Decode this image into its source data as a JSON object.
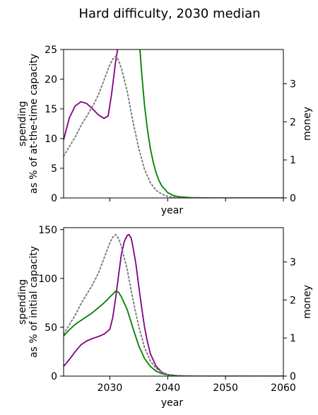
{
  "figure": {
    "suptitle": "Hard difficulty, 2030 median"
  },
  "colors": {
    "purple": "#800080",
    "green": "#008000",
    "dotted": "#808080"
  },
  "chart_data": [
    {
      "type": "line",
      "panel": "top",
      "xlabel": "year",
      "ylabel_line1": "spending",
      "ylabel_line2": "as % of at-the-time capacity",
      "ylabel_right": "money",
      "xlim": [
        2022,
        2060
      ],
      "ylim": [
        0,
        25
      ],
      "y2lim": [
        0,
        3.9
      ],
      "yticks": [
        0,
        5,
        10,
        15,
        20,
        25
      ],
      "y2ticks": [
        0,
        1,
        2,
        3
      ],
      "xticks": [
        2030,
        2040,
        2050,
        2060
      ],
      "xtick_labels_shown": false,
      "grid": false,
      "series": [
        {
          "color": "purple",
          "style": "solid",
          "axis": "left",
          "x": [
            2022,
            2023,
            2024,
            2025,
            2026,
            2027,
            2028,
            2029,
            2029.7,
            2030.3,
            2031,
            2031.5,
            2032
          ],
          "y": [
            9.8,
            13.5,
            15.5,
            16.2,
            15.9,
            15.0,
            14.0,
            13.4,
            13.8,
            17.5,
            23.0,
            26.0,
            30.0
          ]
        },
        {
          "color": "green",
          "style": "solid",
          "axis": "left",
          "x": [
            2035.2,
            2035.5,
            2036,
            2036.5,
            2037,
            2037.5,
            2038,
            2038.5,
            2039,
            2040,
            2041,
            2042,
            2044,
            2048,
            2060
          ],
          "y": [
            25.0,
            21.0,
            15.5,
            11.5,
            8.3,
            6.0,
            4.2,
            2.9,
            2.0,
            0.9,
            0.4,
            0.2,
            0.05,
            0.0,
            0.0
          ]
        },
        {
          "color": "dotted",
          "style": "dotted",
          "axis": "right",
          "x": [
            2022,
            2023,
            2024,
            2025,
            2026,
            2027,
            2028,
            2029,
            2030,
            2030.5,
            2031,
            2031.5,
            2032,
            2033,
            2034,
            2035,
            2036,
            2037,
            2038,
            2039,
            2040,
            2041,
            2043,
            2060
          ],
          "y": [
            1.1,
            1.35,
            1.6,
            1.9,
            2.15,
            2.4,
            2.7,
            3.1,
            3.5,
            3.65,
            3.72,
            3.62,
            3.4,
            2.8,
            2.0,
            1.3,
            0.75,
            0.4,
            0.2,
            0.1,
            0.04,
            0.015,
            0.0,
            0.0
          ]
        }
      ]
    },
    {
      "type": "line",
      "panel": "bottom",
      "xlabel": "year",
      "ylabel_line1": "spending",
      "ylabel_line2": "as % of initial capacity",
      "ylabel_right": "money",
      "xlim": [
        2022,
        2060
      ],
      "ylim": [
        0,
        152
      ],
      "y2lim": [
        0,
        3.9
      ],
      "yticks": [
        0,
        50,
        100,
        150
      ],
      "y2ticks": [
        0,
        1,
        2,
        3
      ],
      "xticks": [
        2030,
        2040,
        2050,
        2060
      ],
      "xtick_labels_shown": true,
      "grid": false,
      "series": [
        {
          "color": "purple",
          "style": "solid",
          "axis": "left",
          "x": [
            2022,
            2023,
            2024,
            2025,
            2026,
            2027,
            2028,
            2029,
            2030,
            2030.5,
            2031,
            2031.5,
            2032,
            2032.5,
            2033,
            2033.3,
            2033.7,
            2034,
            2034.5,
            2035,
            2035.5,
            2036,
            2036.5,
            2037,
            2038,
            2039,
            2040,
            2042,
            2045,
            2060
          ],
          "y": [
            10,
            17,
            25,
            32,
            36,
            38.5,
            40.5,
            43,
            48,
            60,
            80,
            103,
            125,
            138,
            144,
            145,
            141,
            132,
            115,
            92,
            70,
            50,
            35,
            23,
            10,
            4,
            1.5,
            0.3,
            0,
            0
          ]
        },
        {
          "color": "green",
          "style": "solid",
          "axis": "left",
          "x": [
            2022,
            2023,
            2024,
            2025,
            2026,
            2027,
            2028,
            2029,
            2030,
            2030.5,
            2031,
            2031.5,
            2032,
            2033,
            2034,
            2035,
            2036,
            2037,
            2038,
            2039,
            2040,
            2041,
            2043,
            2045,
            2060
          ],
          "y": [
            41,
            47.5,
            53,
            57,
            61,
            65,
            70,
            75,
            81,
            84,
            87,
            86,
            81,
            68,
            49,
            31,
            18,
            10,
            5,
            2.5,
            1.2,
            0.5,
            0.1,
            0,
            0
          ]
        },
        {
          "color": "dotted",
          "style": "dotted",
          "axis": "right",
          "x": [
            2022,
            2023,
            2024,
            2025,
            2026,
            2027,
            2028,
            2029,
            2030,
            2030.5,
            2031,
            2031.5,
            2032,
            2033,
            2034,
            2035,
            2036,
            2037,
            2038,
            2039,
            2040,
            2041,
            2043,
            2060
          ],
          "y": [
            1.1,
            1.35,
            1.6,
            1.9,
            2.15,
            2.4,
            2.7,
            3.1,
            3.5,
            3.65,
            3.72,
            3.62,
            3.4,
            2.8,
            2.0,
            1.3,
            0.75,
            0.4,
            0.2,
            0.1,
            0.04,
            0.015,
            0.0,
            0.0
          ]
        }
      ]
    }
  ]
}
